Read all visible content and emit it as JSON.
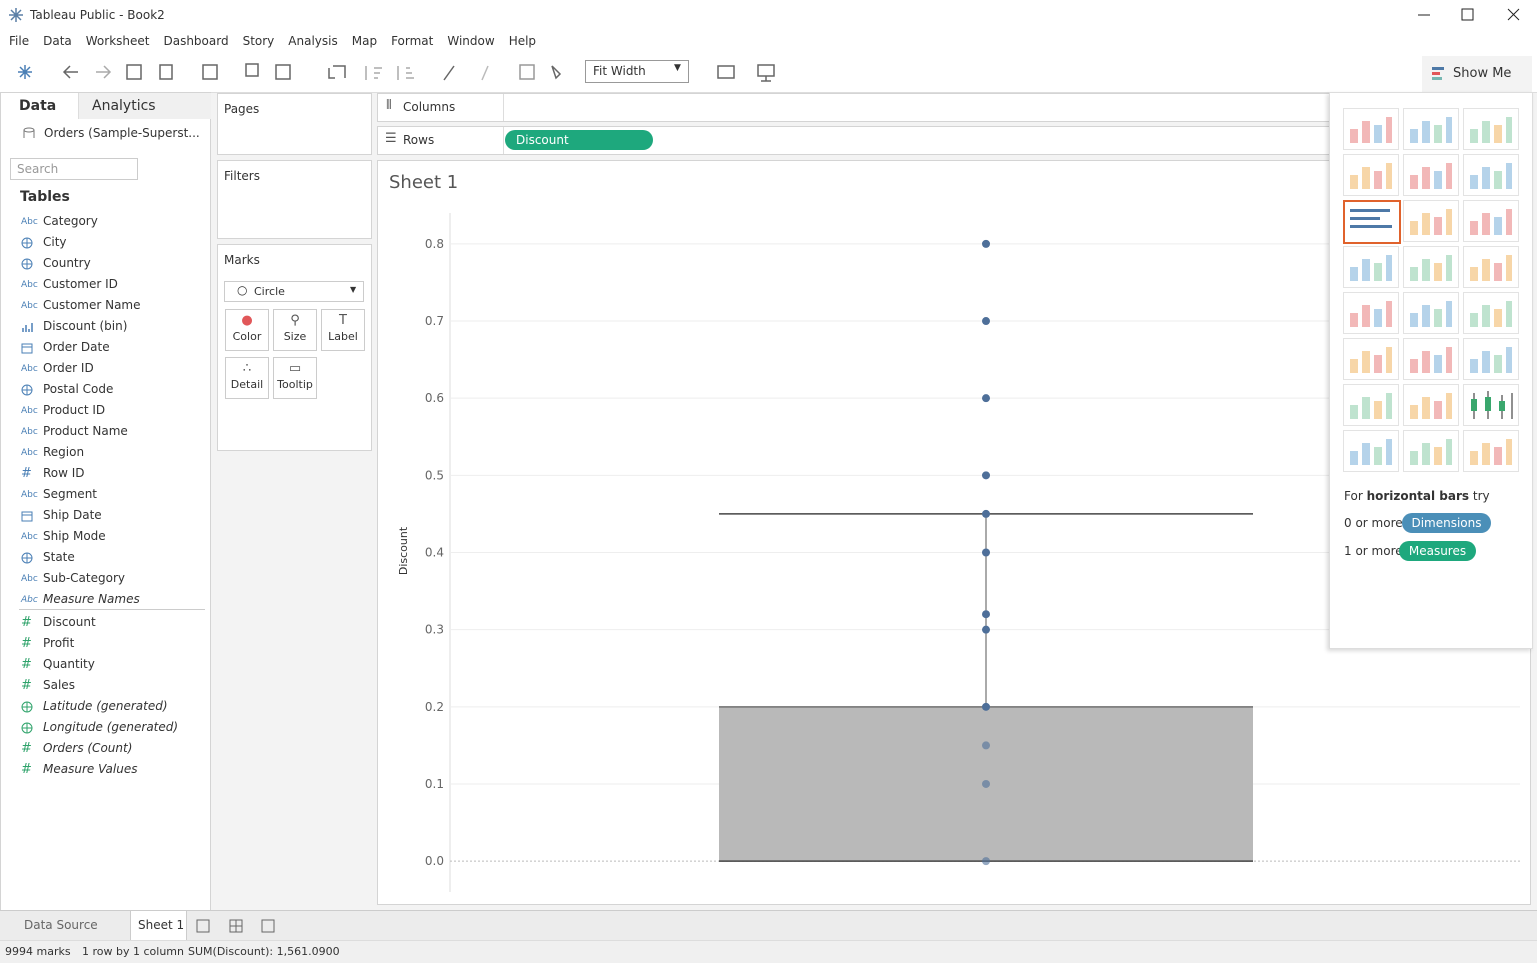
{
  "window": {
    "title": "Tableau Public - Book2"
  },
  "menu": [
    "File",
    "Data",
    "Worksheet",
    "Dashboard",
    "Story",
    "Analysis",
    "Map",
    "Format",
    "Window",
    "Help"
  ],
  "toolbar": {
    "fit": "Fit Width",
    "show_me": "Show Me"
  },
  "data_pane": {
    "tabs": [
      "Data",
      "Analytics"
    ],
    "source": "Orders (Sample-Superst...",
    "search": "Search",
    "tables": "Tables",
    "dimensions": [
      {
        "icon": "Abc",
        "name": "Category"
      },
      {
        "icon": "globe",
        "name": "City"
      },
      {
        "icon": "globe",
        "name": "Country"
      },
      {
        "icon": "Abc",
        "name": "Customer ID"
      },
      {
        "icon": "Abc",
        "name": "Customer Name"
      },
      {
        "icon": "bin",
        "name": "Discount (bin)"
      },
      {
        "icon": "calendar",
        "name": "Order Date"
      },
      {
        "icon": "Abc",
        "name": "Order ID"
      },
      {
        "icon": "globe",
        "name": "Postal Code"
      },
      {
        "icon": "Abc",
        "name": "Product ID"
      },
      {
        "icon": "Abc",
        "name": "Product Name"
      },
      {
        "icon": "Abc",
        "name": "Region"
      },
      {
        "icon": "#",
        "name": "Row ID"
      },
      {
        "icon": "Abc",
        "name": "Segment"
      },
      {
        "icon": "calendar",
        "name": "Ship Date"
      },
      {
        "icon": "Abc",
        "name": "Ship Mode"
      },
      {
        "icon": "globe",
        "name": "State"
      },
      {
        "icon": "Abc",
        "name": "Sub-Category"
      },
      {
        "icon": "Abc",
        "name": "Measure Names",
        "italic": true
      }
    ],
    "measures": [
      {
        "icon": "#",
        "name": "Discount"
      },
      {
        "icon": "#",
        "name": "Profit"
      },
      {
        "icon": "#",
        "name": "Quantity"
      },
      {
        "icon": "#",
        "name": "Sales"
      },
      {
        "icon": "globe",
        "name": "Latitude (generated)",
        "italic": true
      },
      {
        "icon": "globe",
        "name": "Longitude (generated)",
        "italic": true
      },
      {
        "icon": "#",
        "name": "Orders (Count)",
        "italic": true
      },
      {
        "icon": "#",
        "name": "Measure Values",
        "italic": true
      }
    ]
  },
  "shelves": {
    "pages": "Pages",
    "filters": "Filters",
    "marks": "Marks",
    "mark_type": "Circle",
    "mark_buttons": [
      "Color",
      "Size",
      "Label",
      "Detail",
      "Tooltip"
    ],
    "columns": "Columns",
    "rows": "Rows",
    "rows_pill": "Discount"
  },
  "chart_data": {
    "type": "box",
    "title": "Sheet 1",
    "y_label": "Discount",
    "ylim": [
      -0.04,
      0.84
    ],
    "yticks": [
      {
        "value": 0,
        "label": "0.0"
      },
      0.1,
      0.2,
      0.3,
      0.4,
      0.5,
      0.6,
      0.7,
      0.8
    ],
    "grid": true,
    "values": [
      0,
      0.1,
      0.15,
      0.2,
      0.3,
      0.32,
      0.4,
      0.45,
      0.5,
      0.6,
      0.7,
      0.8
    ],
    "color": "#4e6f99",
    "box": {
      "whisker_low": 0,
      "q1": 0,
      "median": 0.2,
      "q3": 0.2,
      "whisker_high": 0.45
    },
    "box_color": "#b9b9b9"
  },
  "show_me": {
    "hint_prefix": "For",
    "hint_bold": "horizontal bars",
    "hint_suffix": "try",
    "dims_count": "0 or more",
    "dims": "Dimensions",
    "meas_count": "1 or more",
    "meas": "Measures"
  },
  "sheet_tabs": [
    "Data Source",
    "Sheet 1"
  ],
  "status": [
    "9994 marks",
    "1 row by 1 column",
    "SUM(Discount): 1,561.0900"
  ]
}
